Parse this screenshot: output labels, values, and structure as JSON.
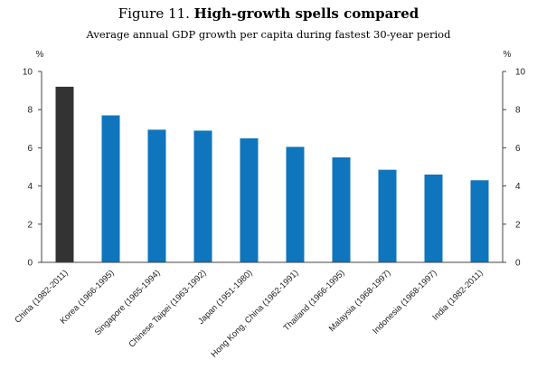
{
  "figure": {
    "number": "Figure 11.",
    "title": "High-growth spells compared",
    "subtitle": "Average annual GDP growth per capita during fastest 30-year period"
  },
  "chart_data": {
    "type": "bar",
    "categories": [
      "China (1982-2011)",
      "Korea (1966-1995)",
      "Singapore (1965-1994)",
      "Chinese Taipei (1963-1992)",
      "Japan (1951-1980)",
      "Hong Kong, China (1962-1991)",
      "Thailand (1966-1995)",
      "Malaysia (1968-1997)",
      "Indonesia (1968-1997)",
      "India (1982-2011)"
    ],
    "values": [
      9.2,
      7.7,
      6.95,
      6.9,
      6.5,
      6.05,
      5.5,
      4.85,
      4.6,
      4.3
    ],
    "highlight_index": 0,
    "ylim": [
      0,
      10
    ],
    "yticks": [
      0,
      2,
      4,
      6,
      8,
      10
    ],
    "y_unit_left": "%",
    "y_unit_right": "%",
    "grid": false,
    "colors": {
      "bar": "#0f75bc",
      "highlight": "#333333",
      "axis": "#444444"
    }
  }
}
